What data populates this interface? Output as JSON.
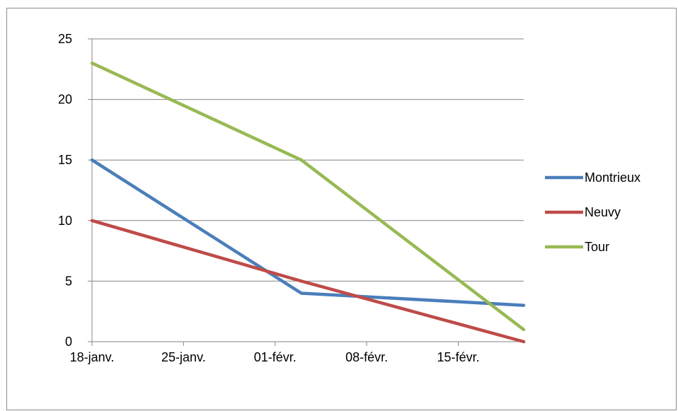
{
  "chart_data": {
    "type": "line",
    "x": [
      "18-janv.",
      "01-févr.",
      "20-févr."
    ],
    "x_axis_ticks": [
      "18-janv.",
      "25-janv.",
      "01-févr.",
      "08-févr.",
      "15-févr."
    ],
    "x_range": [
      "18-janv.",
      "20-févr."
    ],
    "y_axis_ticks": [
      "0",
      "5",
      "10",
      "15",
      "20",
      "25"
    ],
    "ylim": [
      0,
      25
    ],
    "grid": "horizontal",
    "legend_position": "right",
    "series": [
      {
        "name": "Montrieux",
        "x": [
          "18-janv.",
          "03-févr.",
          "20-févr."
        ],
        "values": [
          15,
          4,
          3
        ],
        "color": "#4a7ebb"
      },
      {
        "name": "Neuvy",
        "x": [
          "18-janv.",
          "03-févr.",
          "20-févr."
        ],
        "values": [
          10,
          5,
          0
        ],
        "color": "#be4b48"
      },
      {
        "name": "Tour",
        "x": [
          "18-janv.",
          "03-févr.",
          "20-févr."
        ],
        "values": [
          23,
          15,
          1
        ],
        "color": "#98b954"
      }
    ]
  }
}
